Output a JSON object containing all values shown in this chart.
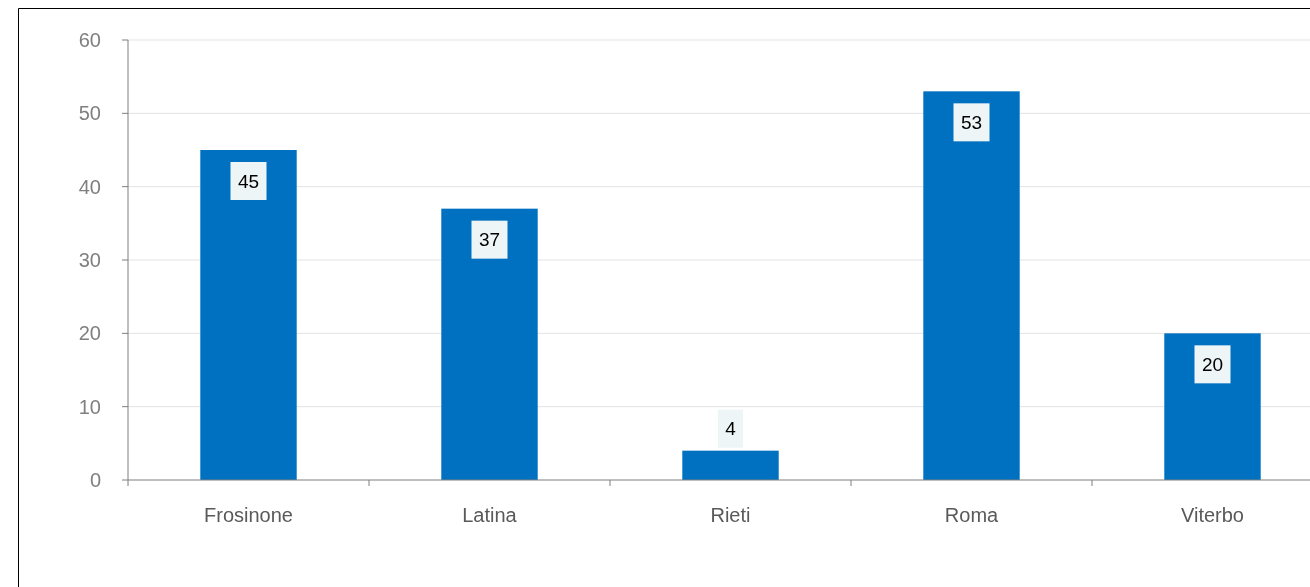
{
  "chart_data": {
    "type": "bar",
    "categories": [
      "Frosinone",
      "Latina",
      "Rieti",
      "Roma",
      "Viterbo"
    ],
    "values": [
      45,
      37,
      4,
      53,
      20
    ],
    "color": "#0070c0",
    "ylim": [
      0,
      60
    ],
    "yticks": [
      0,
      10,
      20,
      30,
      40,
      50,
      60
    ],
    "grid": "y",
    "data_labels": true
  }
}
